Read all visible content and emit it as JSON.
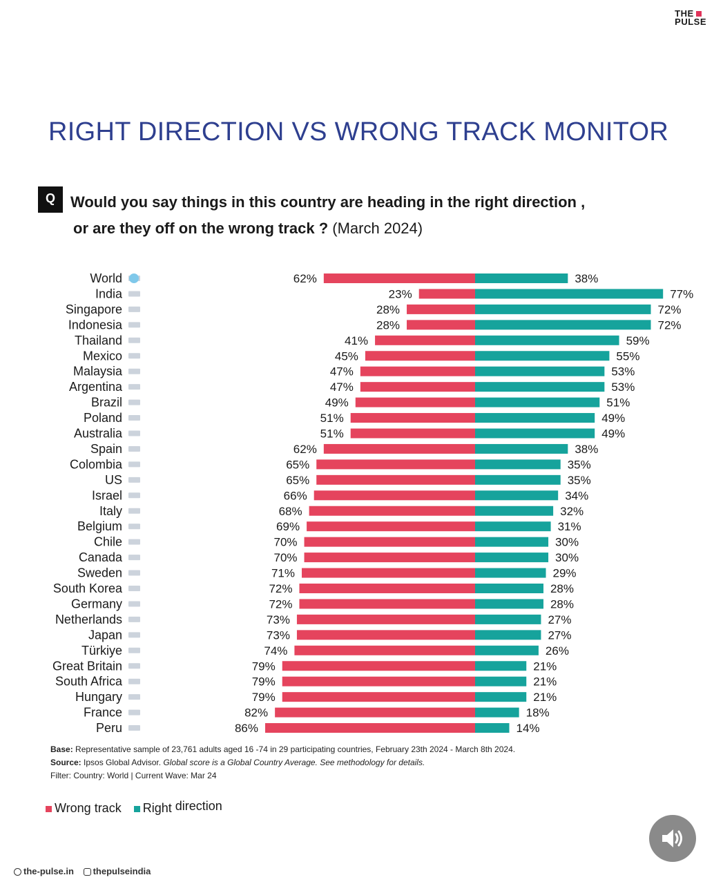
{
  "brand": {
    "line1": "THE",
    "line2": "PULSE"
  },
  "title": "RIGHT DIRECTION VS  WRONG TRACK MONITOR",
  "question": {
    "badge": "Q",
    "line1": "Would you say things in this country are heading in the right direction ,",
    "line2_bold": "or are they off on the wrong track ?",
    "line2_rest": " (March 2024)"
  },
  "colors": {
    "wrong": "#e5445d",
    "right": "#16a39c",
    "title": "#2e3f8f"
  },
  "chart_data": {
    "type": "bar",
    "orientation": "horizontal-diverging",
    "categories": [
      "World",
      "India",
      "Singapore",
      "Indonesia",
      "Thailand",
      "Mexico",
      "Malaysia",
      "Argentina",
      "Brazil",
      "Poland",
      "Australia",
      "Spain",
      "Colombia",
      "US",
      "Israel",
      "Italy",
      "Belgium",
      "Chile",
      "Canada",
      "Sweden",
      "South Korea",
      "Germany",
      "Netherlands",
      "Japan",
      "Türkiye",
      "Great Britain",
      "South Africa",
      "Hungary",
      "France",
      "Peru"
    ],
    "series": [
      {
        "name": "Wrong track",
        "color": "#e5445d",
        "values": [
          62,
          23,
          28,
          28,
          41,
          45,
          47,
          47,
          49,
          51,
          51,
          62,
          65,
          65,
          66,
          68,
          69,
          70,
          70,
          71,
          72,
          72,
          73,
          73,
          74,
          79,
          79,
          79,
          82,
          86
        ]
      },
      {
        "name": "Right direction",
        "color": "#16a39c",
        "values": [
          38,
          77,
          72,
          72,
          59,
          55,
          53,
          53,
          51,
          49,
          49,
          38,
          35,
          35,
          34,
          32,
          31,
          30,
          30,
          29,
          28,
          28,
          27,
          27,
          26,
          21,
          21,
          21,
          18,
          14
        ]
      }
    ],
    "value_suffix": "%",
    "xlim": [
      0,
      100
    ],
    "legend": "bottom-left"
  },
  "notes": {
    "base_label": "Base:",
    "base_text": " Representative sample of 23,761 adults aged 16   -74 in 29 participating countries, February 23th 2024   - March 8th 2024.",
    "source_label": "Source:",
    "source_text": " Ipsos Global Advisor. ",
    "source_italic": "Global score is a Global Country Average. See methodology for details.",
    "filter": "Filter: Country: World | Current Wave: Mar 24"
  },
  "legend": {
    "wrong": "Wrong track",
    "right": "Right",
    "right2": " direction"
  },
  "footer": {
    "site": "the-pulse.in",
    "social": "thepulseindia"
  }
}
